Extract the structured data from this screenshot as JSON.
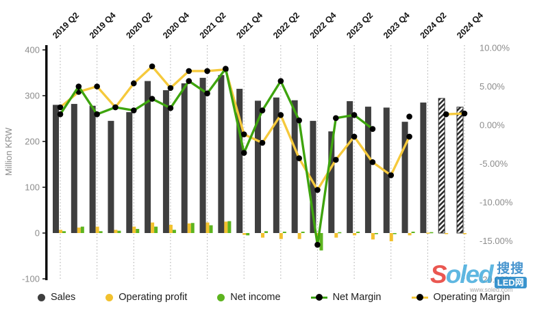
{
  "chart_data": {
    "type": "combo-bar-line",
    "title": "",
    "categories": [
      "2019 Q2",
      "2019 Q3",
      "2019 Q4",
      "2020 Q1",
      "2020 Q2",
      "2020 Q3",
      "2020 Q4",
      "2021 Q1",
      "2021 Q2",
      "2021 Q3",
      "2021 Q4",
      "2022 Q1",
      "2022 Q2",
      "2022 Q3",
      "2022 Q4",
      "2023 Q1",
      "2023 Q2",
      "2023 Q3",
      "2023 Q4",
      "2024 Q1",
      "2024 Q2",
      "2024 Q3",
      "2024 Q4"
    ],
    "x_tick_labels": [
      "2019 Q2",
      "2019 Q4",
      "2020 Q2",
      "2020 Q4",
      "2021 Q2",
      "2021 Q4",
      "2022 Q2",
      "2022 Q4",
      "2023 Q2",
      "2023 Q4",
      "2024 Q2",
      "2024 Q4"
    ],
    "left_axis": {
      "label": "Million KRW",
      "ticks": [
        400,
        300,
        200,
        100,
        0,
        -100
      ],
      "min": -100,
      "max": 400
    },
    "right_axis": {
      "ticks": [
        "10.00%",
        "5.00%",
        "0.00%",
        "-5.00%",
        "-10.00%",
        "-15.00%",
        "-20.00%"
      ],
      "tick_values": [
        10,
        5,
        0,
        -5,
        -10,
        -15,
        -20
      ],
      "min": -20,
      "max": 10
    },
    "series": [
      {
        "name": "Sales",
        "type": "bar",
        "axis": "left",
        "color": "#3f3f3f",
        "values": [
          280,
          282,
          278,
          245,
          264,
          332,
          312,
          327,
          339,
          345,
          315,
          289,
          296,
          290,
          245,
          222,
          288,
          276,
          274,
          243,
          285,
          294,
          275
        ],
        "hatched_indices": [
          21,
          22
        ]
      },
      {
        "name": "Operating profit",
        "type": "bar",
        "axis": "left",
        "color": "#f2c12e",
        "values": [
          7,
          12,
          14,
          7,
          14,
          23,
          18,
          21,
          23,
          25,
          -4,
          -10,
          -13,
          -13,
          -15,
          -10,
          -5,
          -14,
          -18,
          -5,
          1,
          -2,
          -2
        ]
      },
      {
        "name": "Net income",
        "type": "bar",
        "axis": "left",
        "color": "#5db41f",
        "values": [
          4,
          14,
          4,
          5,
          9,
          14,
          7,
          22,
          17,
          26,
          -5,
          4,
          3,
          3,
          -38,
          2,
          3,
          -2,
          -1,
          3,
          2,
          null,
          null
        ]
      },
      {
        "name": "Net Margin",
        "type": "line",
        "axis": "right",
        "color": "#3ea40e",
        "marker_color": "#000000",
        "values": [
          1.4,
          5.0,
          1.4,
          2.3,
          1.9,
          3.4,
          2.2,
          5.7,
          4.1,
          7.3,
          -3.6,
          1.9,
          5.7,
          0.6,
          -15.5,
          0.9,
          1.3,
          -0.5,
          null,
          1.1,
          null,
          null,
          null
        ],
        "line_end_index": 17
      },
      {
        "name": "Operating Margin",
        "type": "line",
        "axis": "right",
        "color": "#f5c93c",
        "marker_color": "#000000",
        "values": [
          2.3,
          4.3,
          5.0,
          2.3,
          5.4,
          7.6,
          4.8,
          7.0,
          7.0,
          7.2,
          -1.2,
          -2.3,
          1.3,
          -4.3,
          -8.4,
          -4.5,
          -1.5,
          -4.8,
          -6.5,
          -1.5,
          null,
          1.4,
          1.5
        ]
      }
    ],
    "legend_position": "bottom",
    "grid": "vertical-dotted"
  },
  "legend": {
    "items": [
      {
        "label": "Sales",
        "marker": "dot",
        "color": "#3f3f3f"
      },
      {
        "label": "Operating profit",
        "marker": "dot",
        "color": "#f2c12e"
      },
      {
        "label": "Net income",
        "marker": "dot",
        "color": "#5db41f"
      },
      {
        "label": "Net Margin",
        "marker": "line-dot",
        "color": "#3ea40e"
      },
      {
        "label": "Operating Margin",
        "marker": "line-dot",
        "color": "#f5c93c"
      }
    ]
  },
  "watermark": {
    "brand_s": "S",
    "brand_rest": "oled",
    "cn": "搜搜",
    "led": "LED网",
    "url": "www.soled.com"
  }
}
